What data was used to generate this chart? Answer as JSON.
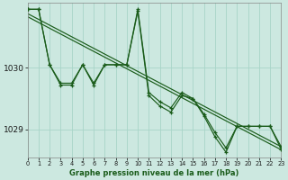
{
  "background_color": "#cce8e0",
  "grid_color": "#a8d4c8",
  "line_color": "#1a5c1a",
  "marker_color": "#1a5c1a",
  "title": "Graphe pression niveau de la mer (hPa)",
  "xlim": [
    0,
    23
  ],
  "ylim": [
    1028.55,
    1031.05
  ],
  "yticks": [
    1029,
    1030
  ],
  "xticks": [
    0,
    1,
    2,
    3,
    4,
    5,
    6,
    7,
    8,
    9,
    10,
    11,
    12,
    13,
    14,
    15,
    16,
    17,
    18,
    19,
    20,
    21,
    22,
    23
  ],
  "series1": {
    "x": [
      0,
      1,
      2,
      3,
      4,
      5,
      6,
      7,
      8,
      9,
      10,
      11,
      12,
      13,
      14,
      15,
      16,
      17,
      18,
      19,
      20,
      21,
      22,
      23
    ],
    "y": [
      1030.95,
      1030.95,
      1030.05,
      1029.75,
      1029.75,
      1030.05,
      1029.75,
      1030.05,
      1030.05,
      1030.05,
      1030.95,
      1029.6,
      1029.45,
      1029.35,
      1029.6,
      1029.5,
      1029.25,
      1028.95,
      1028.7,
      1029.05,
      1029.05,
      1029.05,
      1029.05,
      1028.72
    ]
  },
  "series2": {
    "x": [
      0,
      1,
      2,
      3,
      4,
      5,
      6,
      7,
      8,
      9,
      10,
      11,
      12,
      13,
      14,
      15,
      16,
      17,
      18,
      19,
      20,
      21,
      22,
      23
    ],
    "y": [
      1030.95,
      1030.95,
      1030.05,
      1029.72,
      1029.72,
      1030.05,
      1029.72,
      1030.05,
      1030.05,
      1030.05,
      1030.92,
      1029.55,
      1029.38,
      1029.28,
      1029.55,
      1029.5,
      1029.22,
      1028.88,
      1028.63,
      1029.05,
      1029.05,
      1029.05,
      1029.05,
      1028.68
    ]
  },
  "trend_line": {
    "x": [
      0,
      23
    ],
    "y": [
      1030.88,
      1028.72
    ]
  },
  "trend_line2": {
    "x": [
      0,
      23
    ],
    "y": [
      1030.83,
      1028.67
    ]
  }
}
